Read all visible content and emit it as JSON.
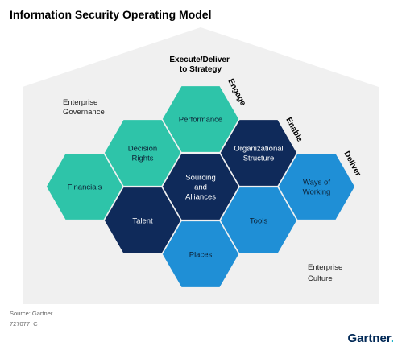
{
  "title": "Information Security Operating Model",
  "center_heading": [
    "Execute/Deliver",
    "to Strategy"
  ],
  "enterprise_governance": [
    "Enterprise",
    "Governance"
  ],
  "enterprise_culture": [
    "Enterprise",
    "Culture"
  ],
  "side_labels": {
    "engage": "Engage",
    "enable": "Enable",
    "deliver": "Deliver"
  },
  "hexagons": [
    {
      "id": "performance",
      "lines": [
        "Performance"
      ],
      "color": "#2ec4a9",
      "text_color": "#0d2236"
    },
    {
      "id": "decision-rights",
      "lines": [
        "Decision",
        "Rights"
      ],
      "color": "#2ec4a9",
      "text_color": "#0d2236"
    },
    {
      "id": "financials",
      "lines": [
        "Financials"
      ],
      "color": "#2ec4a9",
      "text_color": "#0d2236"
    },
    {
      "id": "organizational-structure",
      "lines": [
        "Organizational",
        "Structure"
      ],
      "color": "#0f2a5a",
      "text_color": "#ffffff"
    },
    {
      "id": "sourcing-and-alliances",
      "lines": [
        "Sourcing",
        "and",
        "Alliances"
      ],
      "color": "#0f2a5a",
      "text_color": "#ffffff"
    },
    {
      "id": "talent",
      "lines": [
        "Talent"
      ],
      "color": "#0f2a5a",
      "text_color": "#ffffff"
    },
    {
      "id": "ways-of-working",
      "lines": [
        "Ways of",
        "Working"
      ],
      "color": "#1f8fd6",
      "text_color": "#0d2236"
    },
    {
      "id": "tools",
      "lines": [
        "Tools"
      ],
      "color": "#1f8fd6",
      "text_color": "#0d2236"
    },
    {
      "id": "places",
      "lines": [
        "Places"
      ],
      "color": "#1f8fd6",
      "text_color": "#0d2236"
    }
  ],
  "source": "Source: Gartner",
  "doc_id": "727077_C",
  "logo": {
    "name": "Gartner",
    "dot": "."
  },
  "colors": {
    "house": "#f0f0f0",
    "teal": "#2ec4a9",
    "navy": "#0f2a5a",
    "blue": "#1f8fd6"
  }
}
